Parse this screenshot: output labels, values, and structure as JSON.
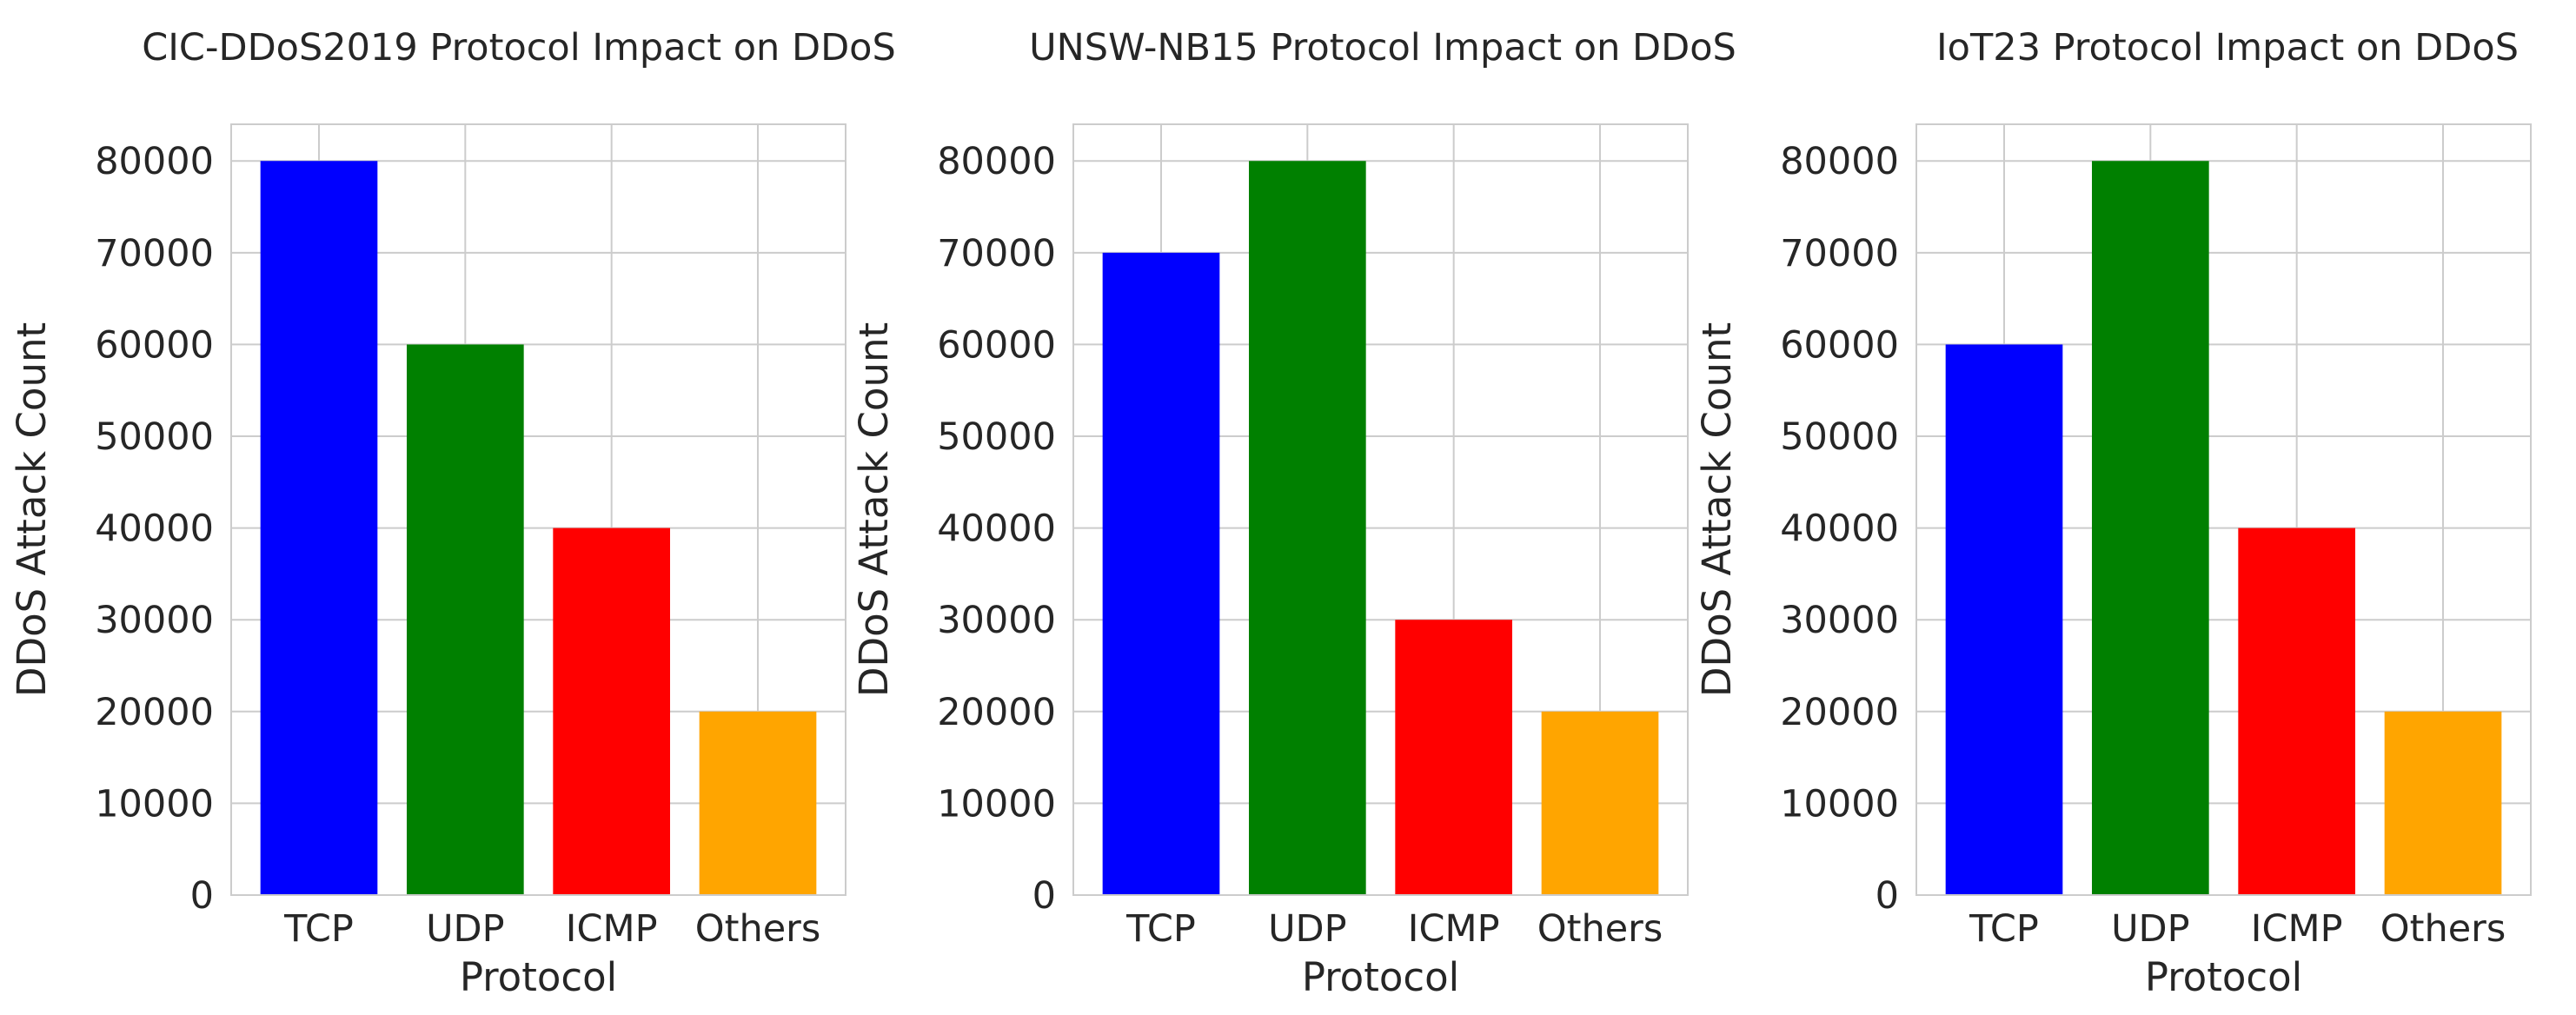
{
  "chart_data": [
    {
      "type": "bar",
      "title": "CIC-DDoS2019 Protocol Impact on DDoS",
      "xlabel": "Protocol",
      "ylabel": "DDoS Attack Count",
      "categories": [
        "TCP",
        "UDP",
        "ICMP",
        "Others"
      ],
      "values": [
        80000,
        60000,
        40000,
        20000
      ],
      "colors": [
        "#0000ff",
        "#008000",
        "#ff0000",
        "#ffa500"
      ],
      "ylim": [
        0,
        84000
      ],
      "yticks": [
        0,
        10000,
        20000,
        30000,
        40000,
        50000,
        60000,
        70000,
        80000
      ],
      "grid": true
    },
    {
      "type": "bar",
      "title": "UNSW-NB15 Protocol Impact on DDoS",
      "xlabel": "Protocol",
      "ylabel": "DDoS Attack Count",
      "categories": [
        "TCP",
        "UDP",
        "ICMP",
        "Others"
      ],
      "values": [
        70000,
        80000,
        30000,
        20000
      ],
      "colors": [
        "#0000ff",
        "#008000",
        "#ff0000",
        "#ffa500"
      ],
      "ylim": [
        0,
        84000
      ],
      "yticks": [
        0,
        10000,
        20000,
        30000,
        40000,
        50000,
        60000,
        70000,
        80000
      ],
      "grid": true
    },
    {
      "type": "bar",
      "title": "IoT23 Protocol Impact on DDoS",
      "xlabel": "Protocol",
      "ylabel": "DDoS Attack Count",
      "categories": [
        "TCP",
        "UDP",
        "ICMP",
        "Others"
      ],
      "values": [
        60000,
        80000,
        40000,
        20000
      ],
      "colors": [
        "#0000ff",
        "#008000",
        "#ff0000",
        "#ffa500"
      ],
      "ylim": [
        0,
        84000
      ],
      "yticks": [
        0,
        10000,
        20000,
        30000,
        40000,
        50000,
        60000,
        70000,
        80000
      ],
      "grid": true
    }
  ]
}
